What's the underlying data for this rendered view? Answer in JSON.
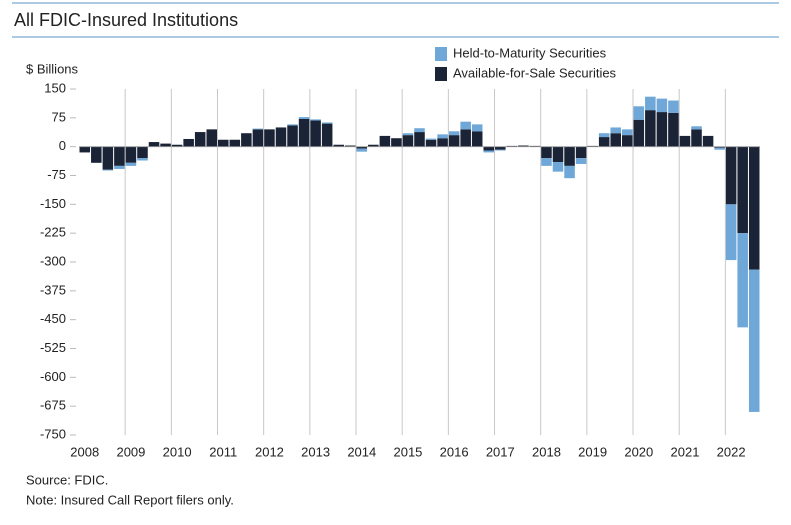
{
  "chart_data": {
    "type": "stacked_bar",
    "title": "All FDIC-Insured Institutions",
    "y_axis_label": "$ Billions",
    "source": "Source: FDIC.",
    "note": "Note: Insured Call Report filers only.",
    "categories": [
      "2008",
      null,
      null,
      null,
      "2009",
      null,
      null,
      null,
      "2010",
      null,
      null,
      null,
      "2011",
      null,
      null,
      null,
      "2012",
      null,
      null,
      null,
      "2013",
      null,
      null,
      null,
      "2014",
      null,
      null,
      null,
      "2015",
      null,
      null,
      null,
      "2016",
      null,
      null,
      null,
      "2017",
      null,
      null,
      null,
      "2018",
      null,
      null,
      null,
      "2019",
      null,
      null,
      null,
      "2020",
      null,
      null,
      null,
      "2021",
      null,
      null,
      null,
      "2022",
      null,
      null
    ],
    "series": [
      {
        "name": "Held-to-Maturity Securities",
        "color": "#6fa8d8",
        "values": [
          0,
          0,
          -2,
          -8,
          -8,
          -6,
          0,
          0,
          0,
          0,
          0,
          0,
          0,
          0,
          0,
          2,
          0,
          0,
          3,
          5,
          3,
          3,
          0,
          0,
          -8,
          0,
          0,
          0,
          5,
          10,
          3,
          10,
          10,
          20,
          18,
          -5,
          -2,
          0,
          0,
          0,
          -20,
          -25,
          -32,
          -15,
          0,
          10,
          15,
          15,
          35,
          35,
          35,
          32,
          0,
          8,
          0,
          -5,
          -145,
          -245,
          -370
        ]
      },
      {
        "name": "Available-for-Sale Securities",
        "color": "#1b2437",
        "values": [
          -15,
          -42,
          -60,
          -50,
          -42,
          -30,
          12,
          8,
          5,
          20,
          38,
          45,
          18,
          18,
          35,
          45,
          45,
          50,
          55,
          72,
          68,
          60,
          5,
          3,
          -5,
          5,
          28,
          22,
          30,
          38,
          18,
          22,
          30,
          45,
          40,
          -10,
          -8,
          2,
          3,
          2,
          -30,
          -40,
          -50,
          -30,
          2,
          25,
          35,
          30,
          70,
          95,
          90,
          88,
          28,
          45,
          28,
          -3,
          -150,
          -225,
          -320
        ]
      }
    ],
    "ylim": [
      -750,
      150
    ],
    "yticks": [
      150,
      75,
      0,
      -75,
      -150,
      -225,
      -300,
      -375,
      -450,
      -525,
      -600,
      -675,
      -750
    ],
    "legend": "top-right"
  }
}
